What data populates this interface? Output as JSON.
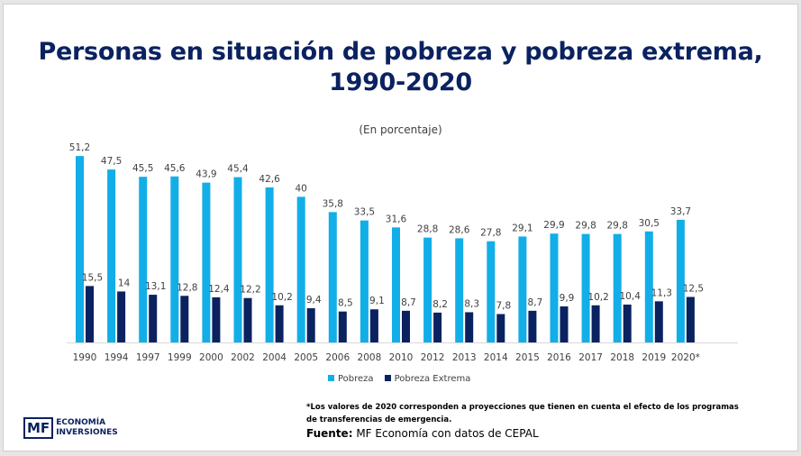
{
  "title": "Personas en situación de pobreza y pobreza extrema, 1990-2020",
  "subtitle": "(En porcentaje)",
  "note": "*Los valores de 2020 corresponden a proyecciones que tienen en cuenta el efecto de los programas de transferencias de emergencia.",
  "source": {
    "label": "Fuente:",
    "text": " MF Economía con datos de CEPAL"
  },
  "logo": {
    "mark": "MF",
    "line1": "ECONOMÍA",
    "line2": "INVERSIONES"
  },
  "chart_data": {
    "type": "bar",
    "title": "Personas en situación de pobreza y pobreza extrema, 1990-2020",
    "subtitle": "(En porcentaje)",
    "categories": [
      "1990",
      "1994",
      "1997",
      "1999",
      "2000",
      "2002",
      "2004",
      "2005",
      "2006",
      "2008",
      "2010",
      "2012",
      "2013",
      "2014",
      "2015",
      "2016",
      "2017",
      "2018",
      "2019",
      "2020*"
    ],
    "series": [
      {
        "name": "Pobreza",
        "color": "#12aee8",
        "values": [
          51.2,
          47.5,
          45.5,
          45.6,
          43.9,
          45.4,
          42.6,
          40,
          35.8,
          33.5,
          31.6,
          28.8,
          28.6,
          27.8,
          29.1,
          29.9,
          29.8,
          29.8,
          30.5,
          33.7
        ],
        "labels": [
          "51,2",
          "47,5",
          "45,5",
          "45,6",
          "43,9",
          "45,4",
          "42,6",
          "40",
          "35,8",
          "33,5",
          "31,6",
          "28,8",
          "28,6",
          "27,8",
          "29,1",
          "29,9",
          "29,8",
          "29,8",
          "30,5",
          "33,7"
        ]
      },
      {
        "name": "Pobreza Extrema",
        "color": "#0b2260",
        "values": [
          15.5,
          14,
          13.1,
          12.8,
          12.4,
          12.2,
          10.2,
          9.4,
          8.5,
          9.1,
          8.7,
          8.2,
          8.3,
          7.8,
          8.7,
          9.9,
          10.2,
          10.4,
          11.3,
          12.5
        ],
        "labels": [
          "15,5",
          "14",
          "13,1",
          "12,8",
          "12,4",
          "12,2",
          "10,2",
          "9,4",
          "8,5",
          "9,1",
          "8,7",
          "8,2",
          "8,3",
          "7,8",
          "8,7",
          "9,9",
          "10,2",
          "10,4",
          "11,3",
          "12,5"
        ]
      }
    ],
    "ylim": [
      0,
      55
    ],
    "grid": false,
    "legend": "bottom"
  }
}
